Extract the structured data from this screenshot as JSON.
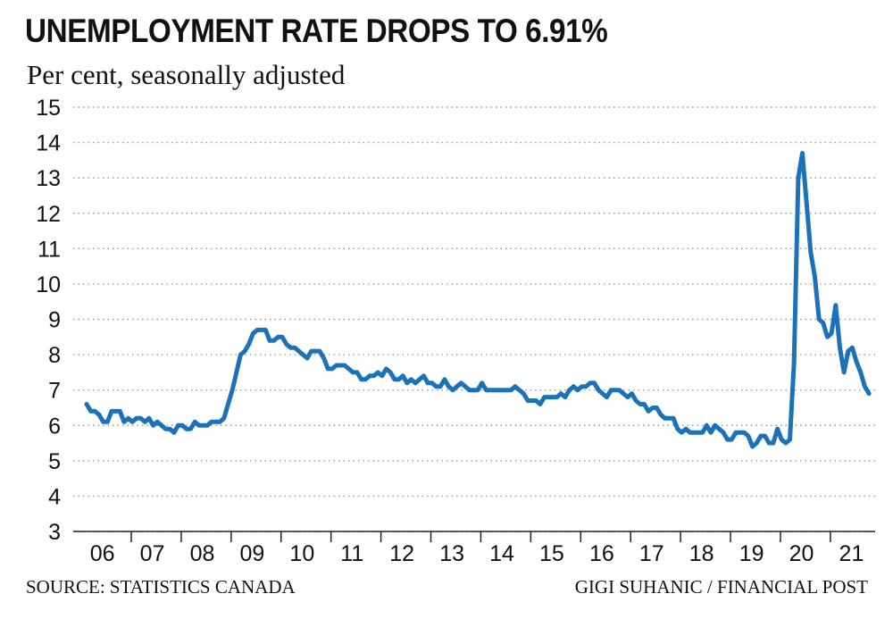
{
  "chart_data": {
    "type": "line",
    "title": "UNEMPLOYMENT RATE DROPS TO 6.91%",
    "subtitle": "Per cent, seasonally adjusted",
    "source": "SOURCE: STATISTICS CANADA",
    "credit": "GIGI SUHANIC / FINANCIAL POST",
    "y_ticks": [
      "3",
      "4",
      "5",
      "6",
      "7",
      "8",
      "9",
      "10",
      "11",
      "12",
      "13",
      "14",
      "15"
    ],
    "ylim": [
      3,
      15
    ],
    "x_tick_labels": [
      "06",
      "07",
      "08",
      "09",
      "10",
      "11",
      "12",
      "13",
      "14",
      "15",
      "16",
      "17",
      "18",
      "19",
      "20",
      "21"
    ],
    "x_start": 2006,
    "x_end_month_index": 187,
    "grid": "horizontal-dotted",
    "line_color": "#1c72b8",
    "series": [
      {
        "frequency": "monthly",
        "start": "2006-01",
        "values": [
          6.6,
          6.4,
          6.4,
          6.3,
          6.1,
          6.1,
          6.4,
          6.4,
          6.4,
          6.1,
          6.2,
          6.1,
          6.2,
          6.2,
          6.1,
          6.2,
          6.0,
          6.1,
          6.0,
          5.9,
          5.9,
          5.8,
          6.0,
          6.0,
          5.9,
          5.9,
          6.1,
          6.0,
          6.0,
          6.0,
          6.1,
          6.1,
          6.1,
          6.2,
          6.6,
          7.0,
          7.5,
          8.0,
          8.1,
          8.3,
          8.6,
          8.7,
          8.7,
          8.7,
          8.4,
          8.4,
          8.5,
          8.5,
          8.3,
          8.2,
          8.2,
          8.1,
          8.0,
          7.9,
          8.1,
          8.1,
          8.1,
          7.9,
          7.6,
          7.6,
          7.7,
          7.7,
          7.7,
          7.6,
          7.5,
          7.5,
          7.3,
          7.3,
          7.4,
          7.4,
          7.5,
          7.4,
          7.6,
          7.5,
          7.3,
          7.3,
          7.4,
          7.2,
          7.3,
          7.2,
          7.3,
          7.4,
          7.2,
          7.2,
          7.1,
          7.1,
          7.3,
          7.1,
          7.0,
          7.1,
          7.2,
          7.1,
          7.0,
          7.0,
          7.0,
          7.2,
          7.0,
          7.0,
          7.0,
          7.0,
          7.0,
          7.0,
          7.0,
          7.1,
          7.0,
          6.9,
          6.7,
          6.7,
          6.7,
          6.6,
          6.8,
          6.8,
          6.8,
          6.8,
          6.9,
          6.8,
          7.0,
          7.1,
          7.0,
          7.1,
          7.1,
          7.2,
          7.2,
          7.0,
          6.9,
          6.8,
          7.0,
          7.0,
          7.0,
          6.9,
          6.8,
          6.9,
          6.7,
          6.6,
          6.6,
          6.4,
          6.5,
          6.5,
          6.3,
          6.2,
          6.2,
          6.2,
          5.9,
          5.8,
          5.9,
          5.8,
          5.8,
          5.8,
          5.8,
          6.0,
          5.8,
          6.0,
          5.9,
          5.8,
          5.6,
          5.6,
          5.8,
          5.8,
          5.8,
          5.7,
          5.4,
          5.5,
          5.7,
          5.7,
          5.5,
          5.5,
          5.9,
          5.6,
          5.5,
          5.6,
          7.8,
          13.0,
          13.7,
          12.3,
          10.9,
          10.2,
          9.0,
          8.9,
          8.5,
          8.6,
          9.4,
          8.2,
          7.5,
          8.1,
          8.2,
          7.8,
          7.5,
          7.1,
          6.9
        ]
      }
    ]
  }
}
